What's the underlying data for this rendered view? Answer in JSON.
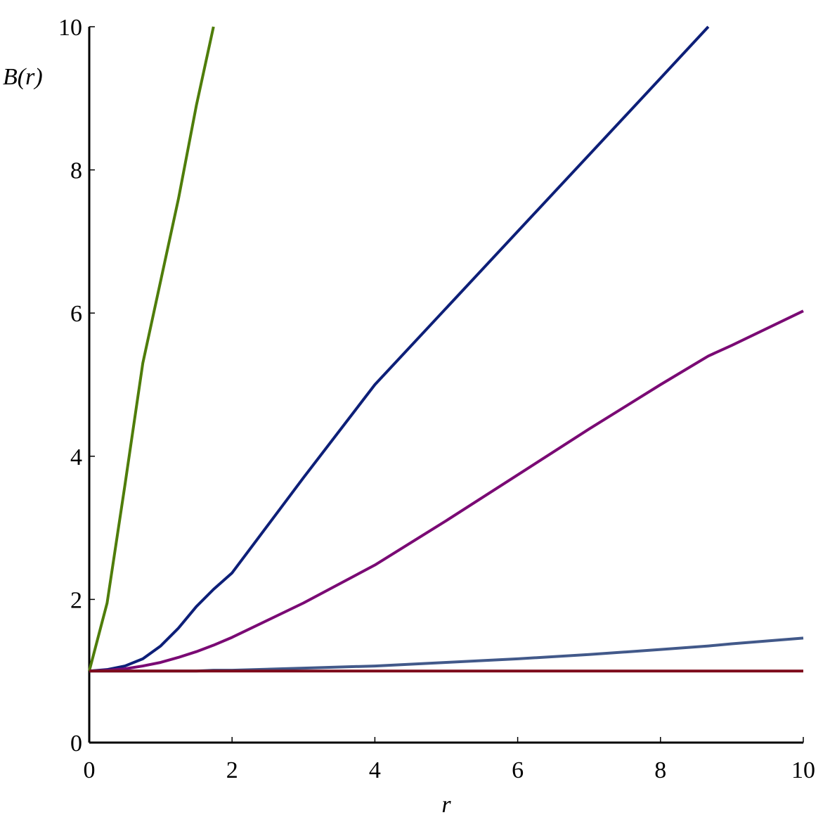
{
  "chart_data": {
    "type": "line",
    "x_label": "r",
    "y_label": "B(r)",
    "x": [
      0,
      0.25,
      0.5,
      0.75,
      1,
      1.25,
      1.5,
      1.74,
      2,
      3,
      4,
      5,
      6,
      7,
      8,
      8.67,
      9,
      10
    ],
    "series": [
      {
        "color": "#4f7d0a",
        "values": [
          1,
          1.95,
          3.6,
          5.3,
          6.45,
          7.6,
          8.9,
          10,
          null,
          null,
          null,
          null,
          null,
          null,
          null,
          null,
          null,
          null
        ]
      },
      {
        "color": "#0d1f78",
        "values": [
          1,
          1.02,
          1.07,
          1.17,
          1.35,
          1.6,
          1.9,
          2.14,
          2.37,
          3.7,
          5.0,
          6.07,
          7.14,
          8.21,
          9.28,
          10,
          null,
          null
        ]
      },
      {
        "color": "#7a0a74",
        "values": [
          1,
          1.01,
          1.03,
          1.07,
          1.12,
          1.19,
          1.27,
          1.36,
          1.47,
          1.95,
          2.48,
          3.1,
          3.74,
          4.38,
          5.0,
          5.4,
          5.55,
          6.03
        ]
      },
      {
        "color": "#42598a",
        "values": [
          1,
          1,
          1,
          1,
          1,
          1,
          1,
          1.01,
          1.01,
          1.04,
          1.07,
          1.12,
          1.17,
          1.23,
          1.3,
          1.35,
          1.38,
          1.46
        ]
      },
      {
        "color": "#7d0a1a",
        "values": [
          1,
          1,
          1,
          1,
          1,
          1,
          1,
          1,
          1,
          1,
          1,
          1,
          1,
          1,
          1,
          1,
          1,
          1
        ]
      }
    ],
    "xlim": [
      0,
      10
    ],
    "ylim": [
      0,
      10
    ],
    "xticks": [
      0,
      2,
      4,
      6,
      8,
      10
    ],
    "yticks": [
      0,
      2,
      4,
      6,
      8,
      10
    ]
  }
}
